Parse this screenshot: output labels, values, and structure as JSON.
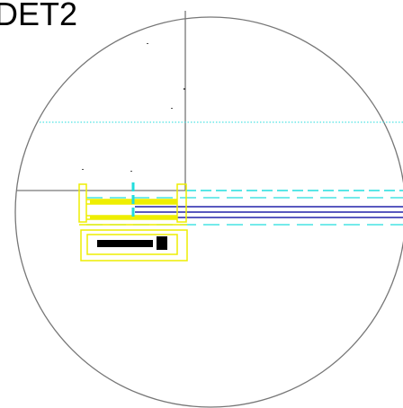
{
  "label": "DET2"
}
